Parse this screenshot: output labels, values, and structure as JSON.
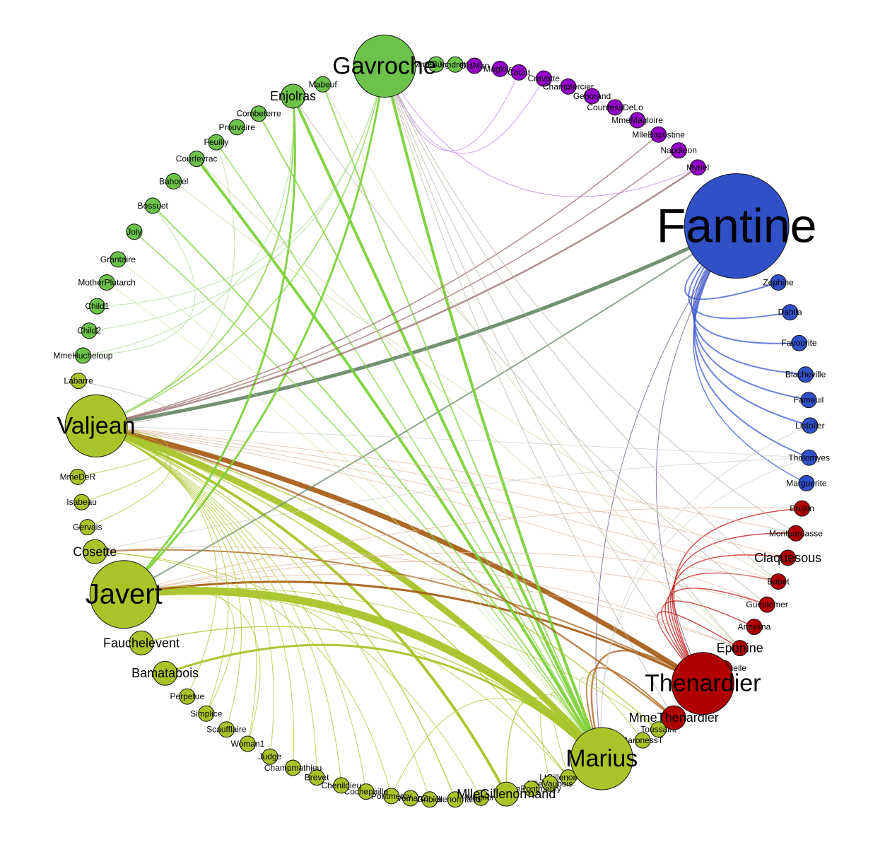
{
  "groups": {
    "gavroche": {
      "color": "#6cc24a",
      "edge": "#7dd13a"
    },
    "purple": {
      "color": "#9400c8",
      "edge": "#a020d0"
    },
    "fantine": {
      "color": "#3050c8",
      "edge": "#3a5ad0"
    },
    "thenard": {
      "color": "#b00000",
      "edge": "#c01010"
    },
    "valjean": {
      "color": "#a8c428",
      "edge": "#aacc30"
    }
  },
  "nodes": [
    {
      "id": "Gavroche",
      "label": "Gavroche",
      "group": "gavroche",
      "size": "xl"
    },
    {
      "id": "MmeBurgon",
      "label": "MmeBurgon",
      "group": "gavroche",
      "size": "s"
    },
    {
      "id": "Jondrette",
      "label": "Jondrette",
      "group": "gavroche",
      "size": "s"
    },
    {
      "id": "OldMan",
      "label": "OldMan",
      "group": "purple",
      "size": "s"
    },
    {
      "id": "MlleMagloire",
      "label": "Magloire",
      "group": "purple",
      "size": "s"
    },
    {
      "id": "Count",
      "label": "Count",
      "group": "purple",
      "size": "s"
    },
    {
      "id": "Cravatte",
      "label": "Cravatte",
      "group": "purple",
      "size": "s"
    },
    {
      "id": "Champtercier",
      "label": "Champtercier",
      "group": "purple",
      "size": "s"
    },
    {
      "id": "Geborand",
      "label": "Geborand",
      "group": "purple",
      "size": "s"
    },
    {
      "id": "CountessDeLo",
      "label": "CountessDeLo",
      "group": "purple",
      "size": "s"
    },
    {
      "id": "MmeMagloire",
      "label": "MmeMagloire",
      "group": "purple",
      "size": "s"
    },
    {
      "id": "MlleBaptistine",
      "label": "MlleBaptistine",
      "group": "purple",
      "size": "s"
    },
    {
      "id": "Napoleon",
      "label": "Napoleon",
      "group": "purple",
      "size": "s"
    },
    {
      "id": "Myriel",
      "label": "Myriel",
      "group": "purple",
      "size": "s"
    },
    {
      "id": "Fantine",
      "label": "Fantine",
      "group": "fantine",
      "size": "xxl"
    },
    {
      "id": "Zephine",
      "label": "Zephine",
      "group": "fantine",
      "size": "s"
    },
    {
      "id": "Dahlia",
      "label": "Dahlia",
      "group": "fantine",
      "size": "s"
    },
    {
      "id": "Favourite",
      "label": "Favourite",
      "group": "fantine",
      "size": "s"
    },
    {
      "id": "Blacheville",
      "label": "Blacheville",
      "group": "fantine",
      "size": "s"
    },
    {
      "id": "Fameuil",
      "label": "Fameuil",
      "group": "fantine",
      "size": "s"
    },
    {
      "id": "Listolier",
      "label": "Listolier",
      "group": "fantine",
      "size": "s"
    },
    {
      "id": "Tholomyes",
      "label": "Tholomyes",
      "group": "fantine",
      "size": "s"
    },
    {
      "id": "Marguerite",
      "label": "Marguerite",
      "group": "fantine",
      "size": "s"
    },
    {
      "id": "Brujon",
      "label": "Brujon",
      "group": "thenard",
      "size": "s"
    },
    {
      "id": "Montparnasse",
      "label": "Montparnasse",
      "group": "thenard",
      "size": "s"
    },
    {
      "id": "Claquesous",
      "label": "Claquesous",
      "group": "thenard",
      "size": "s",
      "font": "m"
    },
    {
      "id": "Babet",
      "label": "Babet",
      "group": "thenard",
      "size": "s"
    },
    {
      "id": "Gueulemer",
      "label": "Gueulemer",
      "group": "thenard",
      "size": "s"
    },
    {
      "id": "Anzelma",
      "label": "Anzelma",
      "group": "thenard",
      "size": "s"
    },
    {
      "id": "Eponine",
      "label": "Eponine",
      "group": "thenard",
      "size": "s",
      "font": "m"
    },
    {
      "id": "Boulatruelle",
      "label": "Boulatruelle",
      "group": "thenard",
      "size": "s"
    },
    {
      "id": "Thenardier",
      "label": "Thenardier",
      "group": "thenard",
      "size": "xl"
    },
    {
      "id": "MmeThenardier",
      "label": "MmeThenardier",
      "group": "thenard",
      "size": "m"
    },
    {
      "id": "Toussaint",
      "label": "Toussaint",
      "group": "valjean",
      "size": "s"
    },
    {
      "id": "BaronessT",
      "label": "BaronessT",
      "group": "valjean",
      "size": "s"
    },
    {
      "id": "Marius",
      "label": "Marius",
      "group": "valjean",
      "size": "xl"
    },
    {
      "id": "LtGillenormand",
      "label": "LtGillenormand",
      "group": "valjean",
      "size": "s"
    },
    {
      "id": "MlleVaubois",
      "label": "MlleVaubois",
      "group": "valjean",
      "size": "s"
    },
    {
      "id": "MmePontmercy",
      "label": "MmePontmercy",
      "group": "valjean",
      "size": "s"
    },
    {
      "id": "MlleGillenormand",
      "label": "MlleGillenormand",
      "group": "valjean",
      "size": "m"
    },
    {
      "id": "Magnon",
      "label": "Magnon",
      "group": "valjean",
      "size": "s"
    },
    {
      "id": "Gillenormand",
      "label": "Gillenormand",
      "group": "valjean",
      "size": "s"
    },
    {
      "id": "Gribier",
      "label": "Gribier",
      "group": "valjean",
      "size": "s"
    },
    {
      "id": "Scaufflaire2",
      "label": "Woman2",
      "group": "valjean",
      "size": "s"
    },
    {
      "id": "Pontmercy",
      "label": "Pontmercy",
      "group": "valjean",
      "size": "s"
    },
    {
      "id": "Cochepaille",
      "label": "Cochepaille",
      "group": "valjean",
      "size": "s"
    },
    {
      "id": "Chenildieu",
      "label": "Chenildieu",
      "group": "valjean",
      "size": "s"
    },
    {
      "id": "Brevet",
      "label": "Brevet",
      "group": "valjean",
      "size": "s"
    },
    {
      "id": "Champmathieu",
      "label": "Champmathieu",
      "group": "valjean",
      "size": "s"
    },
    {
      "id": "Judge",
      "label": "Judge",
      "group": "valjean",
      "size": "s"
    },
    {
      "id": "Woman1",
      "label": "Woman1",
      "group": "valjean",
      "size": "s"
    },
    {
      "id": "Scaufflaire",
      "label": "Scaufflaire",
      "group": "valjean",
      "size": "s"
    },
    {
      "id": "Simplice",
      "label": "Simplice",
      "group": "valjean",
      "size": "s"
    },
    {
      "id": "Perpetue",
      "label": "Perpetue",
      "group": "valjean",
      "size": "s"
    },
    {
      "id": "Bamatabois",
      "label": "Bamatabois",
      "group": "valjean",
      "size": "m"
    },
    {
      "id": "Fauchelevent",
      "label": "Fauchelevent",
      "group": "valjean",
      "size": "m"
    },
    {
      "id": "Javert",
      "label": "Javert",
      "group": "valjean",
      "size": "l"
    },
    {
      "id": "Cosette",
      "label": "Cosette",
      "group": "valjean",
      "size": "m"
    },
    {
      "id": "Gervais",
      "label": "Gervais",
      "group": "valjean",
      "size": "s"
    },
    {
      "id": "Isabeau",
      "label": "Isabeau",
      "group": "valjean",
      "size": "s"
    },
    {
      "id": "MmeDeR",
      "label": "MmeDeR",
      "group": "valjean",
      "size": "s"
    },
    {
      "id": "Valjean",
      "label": "Valjean",
      "group": "valjean",
      "size": "xl"
    },
    {
      "id": "Labarre",
      "label": "Labarre",
      "group": "valjean",
      "size": "s"
    },
    {
      "id": "MmeHucheloup",
      "label": "MmeHucheloup",
      "group": "gavroche",
      "size": "s"
    },
    {
      "id": "Child2",
      "label": "Child2",
      "group": "gavroche",
      "size": "s"
    },
    {
      "id": "Child1",
      "label": "Child1",
      "group": "gavroche",
      "size": "s"
    },
    {
      "id": "MotherPlutarch",
      "label": "MotherPlutarch",
      "group": "gavroche",
      "size": "s"
    },
    {
      "id": "Grantaire",
      "label": "Grantaire",
      "group": "gavroche",
      "size": "s"
    },
    {
      "id": "Joly",
      "label": "Joly",
      "group": "gavroche",
      "size": "s"
    },
    {
      "id": "Bossuet",
      "label": "Bossuet",
      "group": "gavroche",
      "size": "s"
    },
    {
      "id": "Bahorel",
      "label": "Bahorel",
      "group": "gavroche",
      "size": "s"
    },
    {
      "id": "Courfeyrac",
      "label": "Courfeyrac",
      "group": "gavroche",
      "size": "s"
    },
    {
      "id": "Feuilly",
      "label": "Feuilly",
      "group": "gavroche",
      "size": "s"
    },
    {
      "id": "Prouvaire",
      "label": "Prouvaire",
      "group": "gavroche",
      "size": "s"
    },
    {
      "id": "Combeferre",
      "label": "Combeferre",
      "group": "gavroche",
      "size": "s"
    },
    {
      "id": "Enjolras",
      "label": "Enjolras",
      "group": "gavroche",
      "size": "m",
      "font": "m"
    },
    {
      "id": "Mabeuf",
      "label": "Mabeuf",
      "group": "gavroche",
      "size": "s"
    }
  ],
  "edges": [
    {
      "s": "Valjean",
      "t": "Fantine",
      "w": 5,
      "c": "#6a8a6a"
    },
    {
      "s": "Valjean",
      "t": "Thenardier",
      "w": 7,
      "c": "#a8601a"
    },
    {
      "s": "Valjean",
      "t": "Marius",
      "w": 9,
      "c": "#a8c428"
    },
    {
      "s": "Javert",
      "t": "Marius",
      "w": 11,
      "c": "#a8c428"
    },
    {
      "s": "Valjean",
      "t": "MlleGillenormand",
      "w": 4,
      "c": "#a8c428"
    },
    {
      "s": "Javert",
      "t": "Thenardier",
      "w": 3,
      "c": "#a8601a"
    },
    {
      "s": "Cosette",
      "t": "Thenardier",
      "w": 2,
      "c": "#a8601a"
    },
    {
      "s": "Bamatabois",
      "t": "Marius",
      "w": 3,
      "c": "#a8c428"
    },
    {
      "s": "Javert",
      "t": "Fantine",
      "w": 2,
      "c": "#6a8a6a"
    },
    {
      "s": "Gavroche",
      "t": "Marius",
      "w": 4,
      "c": "#7dd13a"
    },
    {
      "s": "Enjolras",
      "t": "Marius",
      "w": 4,
      "c": "#7dd13a"
    },
    {
      "s": "Courfeyrac",
      "t": "Marius",
      "w": 4,
      "c": "#7dd13a"
    },
    {
      "s": "Bossuet",
      "t": "Marius",
      "w": 2,
      "c": "#7dd13a"
    },
    {
      "s": "Combeferre",
      "t": "Marius",
      "w": 2,
      "c": "#7dd13a"
    },
    {
      "s": "Joly",
      "t": "Marius",
      "w": 1.5,
      "c": "#7dd13a"
    },
    {
      "s": "Mabeuf",
      "t": "Marius",
      "w": 2,
      "c": "#7dd13a"
    },
    {
      "s": "Feuilly",
      "t": "Marius",
      "w": 1.5,
      "c": "#7dd13a"
    },
    {
      "s": "Gavroche",
      "t": "Javert",
      "w": 3,
      "c": "#7dd13a"
    },
    {
      "s": "Enjolras",
      "t": "Javert",
      "w": 3,
      "c": "#7dd13a"
    },
    {
      "s": "Valjean",
      "t": "Enjolras",
      "w": 2,
      "c": "#7dd13a"
    },
    {
      "s": "Valjean",
      "t": "Gavroche",
      "w": 1.5,
      "c": "#7dd13a"
    },
    {
      "s": "Valjean",
      "t": "Myriel",
      "w": 2.5,
      "c": "#9a6a6a"
    },
    {
      "s": "Valjean",
      "t": "Napoleon",
      "w": 1.5,
      "c": "#9a6a6a"
    },
    {
      "s": "Valjean",
      "t": "MlleBaptistine",
      "w": 1.5,
      "c": "#9a6a6a"
    },
    {
      "s": "Fantine",
      "t": "Zephine",
      "w": 2,
      "c": "#3a5ad0"
    },
    {
      "s": "Fantine",
      "t": "Dahlia",
      "w": 2,
      "c": "#3a5ad0"
    },
    {
      "s": "Fantine",
      "t": "Favourite",
      "w": 2,
      "c": "#3a5ad0"
    },
    {
      "s": "Fantine",
      "t": "Blacheville",
      "w": 2,
      "c": "#3a5ad0"
    },
    {
      "s": "Fantine",
      "t": "Fameuil",
      "w": 2,
      "c": "#3a5ad0"
    },
    {
      "s": "Fantine",
      "t": "Listolier",
      "w": 2,
      "c": "#3a5ad0"
    },
    {
      "s": "Fantine",
      "t": "Tholomyes",
      "w": 2,
      "c": "#3a5ad0"
    },
    {
      "s": "Fantine",
      "t": "Marguerite",
      "w": 1.5,
      "c": "#3a5ad0"
    },
    {
      "s": "Fantine",
      "t": "Marius",
      "w": 1,
      "c": "#6a4a8a"
    },
    {
      "s": "Fantine",
      "t": "Thenardier",
      "w": 1,
      "c": "#6a4a8a"
    },
    {
      "s": "Thenardier",
      "t": "Brujon",
      "w": 1.5,
      "c": "#c01010"
    },
    {
      "s": "Thenardier",
      "t": "Montparnasse",
      "w": 1.5,
      "c": "#c01010"
    },
    {
      "s": "Thenardier",
      "t": "Claquesous",
      "w": 1.5,
      "c": "#c01010"
    },
    {
      "s": "Thenardier",
      "t": "Babet",
      "w": 1.5,
      "c": "#c01010"
    },
    {
      "s": "Thenardier",
      "t": "Gueulemer",
      "w": 1.5,
      "c": "#c01010"
    },
    {
      "s": "Thenardier",
      "t": "Anzelma",
      "w": 1.5,
      "c": "#c01010"
    },
    {
      "s": "Thenardier",
      "t": "Eponine",
      "w": 1.5,
      "c": "#c01010"
    },
    {
      "s": "Thenardier",
      "t": "Marius",
      "w": 2.5,
      "c": "#a8601a"
    },
    {
      "s": "MmeThenardier",
      "t": "Marius",
      "w": 2,
      "c": "#a8601a"
    },
    {
      "s": "Valjean",
      "t": "MmeThenardier",
      "w": 2.5,
      "c": "#a8601a"
    },
    {
      "s": "Gavroche",
      "t": "Myriel",
      "w": 1,
      "c": "#c080e0"
    },
    {
      "s": "Gavroche",
      "t": "Cravatte",
      "w": 1,
      "c": "#c080e0"
    },
    {
      "s": "Gavroche",
      "t": "Count",
      "w": 1,
      "c": "#c080e0"
    },
    {
      "s": "Gavroche",
      "t": "Thenardier",
      "w": 1,
      "c": "#b8b0a0"
    },
    {
      "s": "Gavroche",
      "t": "Eponine",
      "w": 1,
      "c": "#b8b0a0"
    },
    {
      "s": "Enjolras",
      "t": "Gueulemer",
      "w": 1,
      "c": "#b8b0a0"
    },
    {
      "s": "Courfeyrac",
      "t": "Eponine",
      "w": 1,
      "c": "#c8d8a0"
    },
    {
      "s": "Bahorel",
      "t": "Babet",
      "w": 1,
      "c": "#c8d8a0"
    },
    {
      "s": "Valjean",
      "t": "Labarre",
      "w": 1,
      "c": "#b8b0a0"
    },
    {
      "s": "Valjean",
      "t": "Babet",
      "w": 1,
      "c": "#e0b8a0"
    },
    {
      "s": "Valjean",
      "t": "Gueulemer",
      "w": 1,
      "c": "#e0b8a0"
    },
    {
      "s": "Valjean",
      "t": "Claquesous",
      "w": 1,
      "c": "#e0b8a0"
    },
    {
      "s": "Valjean",
      "t": "Montparnasse",
      "w": 1,
      "c": "#e0b8a0"
    },
    {
      "s": "Valjean",
      "t": "Tholomyes",
      "w": 1,
      "c": "#c8d0c8"
    },
    {
      "s": "Javert",
      "t": "Babet",
      "w": 1,
      "c": "#e0b8a0"
    },
    {
      "s": "Javert",
      "t": "Gueulemer",
      "w": 1,
      "c": "#e0b8a0"
    },
    {
      "s": "Javert",
      "t": "Brujon",
      "w": 1,
      "c": "#e0b8a0"
    },
    {
      "s": "Javert",
      "t": "Eponine",
      "w": 1,
      "c": "#e0b8a0"
    },
    {
      "s": "Cosette",
      "t": "Tholomyes",
      "w": 1,
      "c": "#c8d0c8"
    },
    {
      "s": "Cosette",
      "t": "Eponine",
      "w": 1,
      "c": "#e0b8a0"
    },
    {
      "s": "Marius",
      "t": "Tholomyes",
      "w": 1,
      "c": "#c8d0c8"
    },
    {
      "s": "Marius",
      "t": "Listolier",
      "w": 1,
      "c": "#c8d0c8"
    },
    {
      "s": "Valjean",
      "t": "Toussaint",
      "w": 1.5,
      "c": "#a8c428"
    },
    {
      "s": "Valjean",
      "t": "Gillenormand",
      "w": 1.5,
      "c": "#a8c428"
    },
    {
      "s": "Valjean",
      "t": "LtGillenormand",
      "w": 1.5,
      "c": "#a8c428"
    },
    {
      "s": "Javert",
      "t": "Toussaint",
      "w": 1,
      "c": "#a8c428"
    },
    {
      "s": "Javert",
      "t": "LtGillenormand",
      "w": 1,
      "c": "#a8c428"
    },
    {
      "s": "Valjean",
      "t": "Woman1",
      "w": 1,
      "c": "#a8c428"
    },
    {
      "s": "Valjean",
      "t": "Judge",
      "w": 1,
      "c": "#a8c428"
    },
    {
      "s": "Valjean",
      "t": "Champmathieu",
      "w": 1,
      "c": "#a8c428"
    },
    {
      "s": "Valjean",
      "t": "Brevet",
      "w": 1,
      "c": "#a8c428"
    },
    {
      "s": "Valjean",
      "t": "Chenildieu",
      "w": 1,
      "c": "#a8c428"
    },
    {
      "s": "Valjean",
      "t": "Cochepaille",
      "w": 1,
      "c": "#a8c428"
    },
    {
      "s": "Valjean",
      "t": "Simplice",
      "w": 1,
      "c": "#a8c428"
    },
    {
      "s": "Valjean",
      "t": "Perpetue",
      "w": 1,
      "c": "#a8c428"
    },
    {
      "s": "Valjean",
      "t": "Scaufflaire",
      "w": 1,
      "c": "#a8c428"
    },
    {
      "s": "Valjean",
      "t": "Gribier",
      "w": 1,
      "c": "#a8c428"
    },
    {
      "s": "Fauchelevent",
      "t": "Marius",
      "w": 1.5,
      "c": "#a8c428"
    },
    {
      "s": "Cosette",
      "t": "Pontmercy",
      "w": 1,
      "c": "#a8c428"
    },
    {
      "s": "Cosette",
      "t": "Magnon",
      "w": 1,
      "c": "#a8c428"
    },
    {
      "s": "Marius",
      "t": "Pontmercy",
      "w": 1,
      "c": "#a8c428"
    },
    {
      "s": "Javert",
      "t": "Woman1",
      "w": 1,
      "c": "#a8c428"
    },
    {
      "s": "Javert",
      "t": "Simplice",
      "w": 1,
      "c": "#a8c428"
    },
    {
      "s": "Gavroche",
      "t": "MmeThenardier",
      "w": 1,
      "c": "#b8b0a0"
    },
    {
      "s": "Gavroche",
      "t": "Babet",
      "w": 1,
      "c": "#b8b0a0"
    },
    {
      "s": "Gavroche",
      "t": "Montparnasse",
      "w": 1,
      "c": "#b8b0a0"
    },
    {
      "s": "Mabeuf",
      "t": "Eponine",
      "w": 1,
      "c": "#c8d8a0"
    },
    {
      "s": "Grantaire",
      "t": "Marius",
      "w": 1,
      "c": "#c8e8a0"
    },
    {
      "s": "MotherPlutarch",
      "t": "Marius",
      "w": 1,
      "c": "#c8e8a0"
    },
    {
      "s": "Child1",
      "t": "Gavroche",
      "w": 1,
      "c": "#a8d890"
    },
    {
      "s": "Child2",
      "t": "Gavroche",
      "w": 1,
      "c": "#a8d890"
    },
    {
      "s": "MmeHucheloup",
      "t": "Enjolras",
      "w": 1,
      "c": "#a8d890"
    },
    {
      "s": "MmeHucheloup",
      "t": "Bossuet",
      "w": 1,
      "c": "#a8d890"
    },
    {
      "s": "Feuilly",
      "t": "Valjean",
      "w": 1,
      "c": "#b8d8a0"
    },
    {
      "s": "Valjean",
      "t": "Isabeau",
      "w": 1,
      "c": "#a8c428"
    },
    {
      "s": "Valjean",
      "t": "Gervais",
      "w": 1,
      "c": "#a8c428"
    },
    {
      "s": "Valjean",
      "t": "MmeDeR",
      "w": 1,
      "c": "#a8c428"
    },
    {
      "s": "Marius",
      "t": "BaronessT",
      "w": 1,
      "c": "#a8c428"
    },
    {
      "s": "Marius",
      "t": "MlleVaubois",
      "w": 1,
      "c": "#a8c428"
    },
    {
      "s": "Marius",
      "t": "LtGillenormand",
      "w": 1,
      "c": "#a8c428"
    },
    {
      "s": "Marius",
      "t": "MlleGillenormand",
      "w": 1.5,
      "c": "#a8c428"
    }
  ]
}
